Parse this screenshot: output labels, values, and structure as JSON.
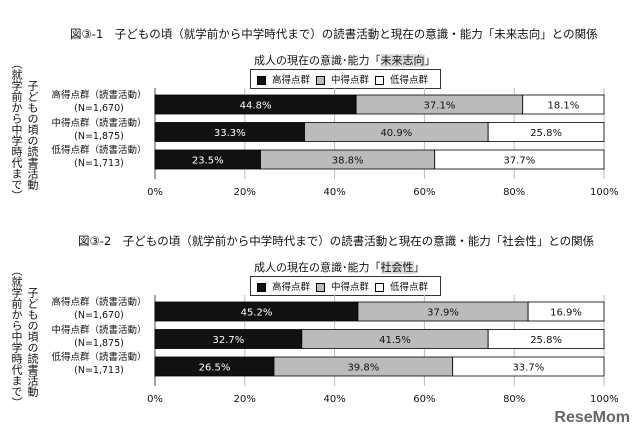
{
  "chart_data": [
    {
      "type": "bar",
      "orientation": "horizontal-stacked-100",
      "title": "図③-1　子どもの頃（就学前から中学時代まで）の読書活動と現在の意識・能力「未来志向」との関係",
      "subtitle_prefix": "成人の現在の意識･能力「",
      "subtitle_highlight": "未来志向",
      "subtitle_suffix": "」",
      "ylabel_outer": "（就学前から中学時代まで）",
      "ylabel_inner": "子どもの頃の読書活動",
      "categories": [
        {
          "name": "高得点群（読書活動）",
          "n": "(N=1,670)"
        },
        {
          "name": "中得点群（読書活動）",
          "n": "(N=1,875)"
        },
        {
          "name": "低得点群（読書活動）",
          "n": "(N=1,713)"
        }
      ],
      "series": [
        {
          "name": "高得点群",
          "color": "#111111",
          "label_color": "#ffffff",
          "values": [
            44.8,
            33.3,
            23.5
          ]
        },
        {
          "name": "中得点群",
          "color": "#bbbbbb",
          "label_color": "#111111",
          "values": [
            37.1,
            40.9,
            38.8
          ]
        },
        {
          "name": "低得点群",
          "color": "#ffffff",
          "label_color": "#111111",
          "values": [
            18.1,
            25.8,
            37.7
          ]
        }
      ],
      "xlim": [
        0,
        100
      ],
      "xticks": [
        "0%",
        "20%",
        "40%",
        "60%",
        "80%",
        "100%"
      ],
      "grid": true,
      "legend": "top-center"
    },
    {
      "type": "bar",
      "orientation": "horizontal-stacked-100",
      "title": "図③-2　子どもの頃（就学前から中学時代まで）の読書活動と現在の意識・能力「社会性」との関係",
      "subtitle_prefix": "成人の現在の意識･能力「",
      "subtitle_highlight": "社会性",
      "subtitle_suffix": "」",
      "ylabel_outer": "（就学前から中学時代まで）",
      "ylabel_inner": "子どもの頃の読書活動",
      "categories": [
        {
          "name": "高得点群（読書活動）",
          "n": "(N=1,670)"
        },
        {
          "name": "中得点群（読書活動）",
          "n": "(N=1,875)"
        },
        {
          "name": "低得点群（読書活動）",
          "n": "(N=1,713)"
        }
      ],
      "series": [
        {
          "name": "高得点群",
          "color": "#111111",
          "label_color": "#ffffff",
          "values": [
            45.2,
            32.7,
            26.5
          ]
        },
        {
          "name": "中得点群",
          "color": "#bbbbbb",
          "label_color": "#111111",
          "values": [
            37.9,
            41.5,
            39.8
          ]
        },
        {
          "name": "低得点群",
          "color": "#ffffff",
          "label_color": "#111111",
          "values": [
            16.9,
            25.8,
            33.7
          ]
        }
      ],
      "xlim": [
        0,
        100
      ],
      "xticks": [
        "0%",
        "20%",
        "40%",
        "60%",
        "80%",
        "100%"
      ],
      "grid": true,
      "legend": "top-center"
    }
  ],
  "watermark": "ReseMom"
}
